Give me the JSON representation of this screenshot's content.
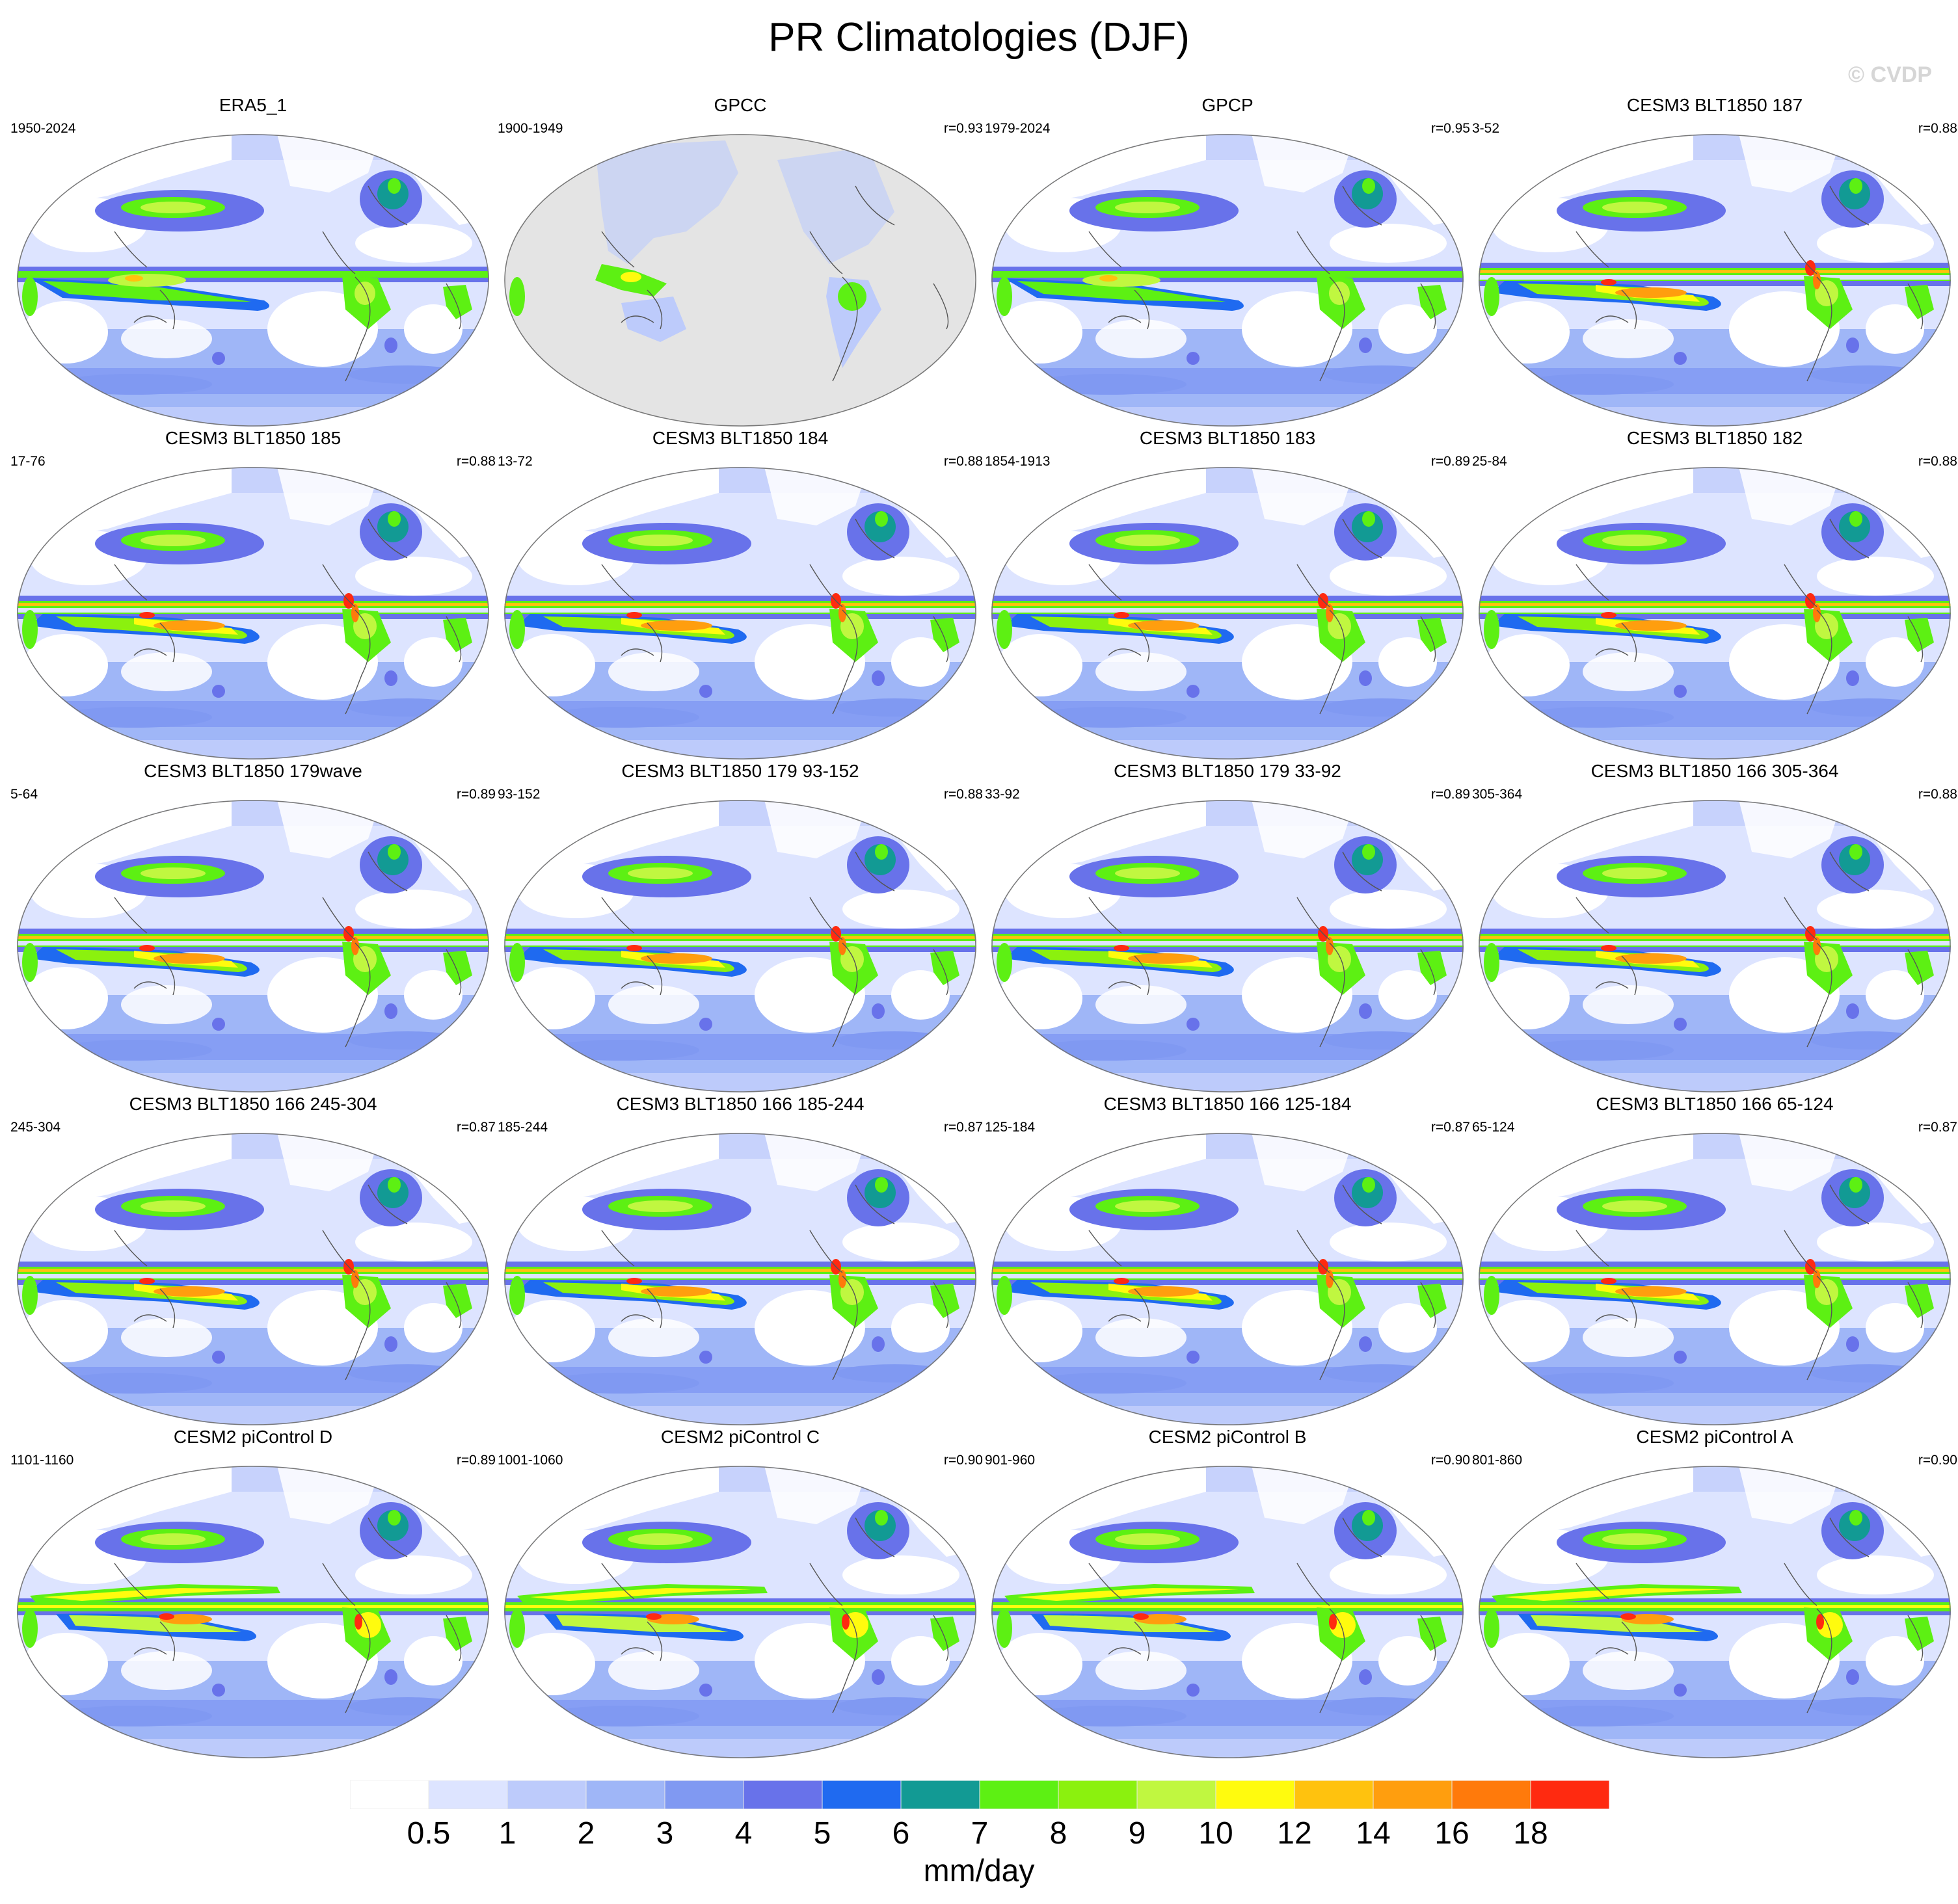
{
  "title": "PR Climatologies (DJF)",
  "watermark": "© CVDP",
  "colorbar": {
    "units": "mm/day",
    "labels": [
      "0.5",
      "1",
      "2",
      "3",
      "4",
      "5",
      "6",
      "7",
      "8",
      "9",
      "10",
      "12",
      "14",
      "16",
      "18"
    ],
    "colors": [
      "#ffffff",
      "#dde4ff",
      "#bdcbfb",
      "#9fb6f7",
      "#8099f2",
      "#6872ea",
      "#1f6af0",
      "#129a94",
      "#5df013",
      "#8bf10e",
      "#c0f740",
      "#fffb0e",
      "#ffc20e",
      "#ff9e0e",
      "#ff7a0b",
      "#ff2a10"
    ]
  },
  "panels": [
    {
      "title": "ERA5_1",
      "period": "1950-2024",
      "corr": "",
      "variant": "era5"
    },
    {
      "title": "GPCC",
      "period": "1900-1949",
      "corr": "r=0.93",
      "variant": "gpcc"
    },
    {
      "title": "GPCP",
      "period": "1979-2024",
      "corr": "r=0.95",
      "variant": "gpcp"
    },
    {
      "title": "CESM3 BLT1850 187",
      "period": "3-52",
      "corr": "r=0.88",
      "variant": "model"
    },
    {
      "title": "CESM3 BLT1850 185",
      "period": "17-76",
      "corr": "r=0.88",
      "variant": "model"
    },
    {
      "title": "CESM3 BLT1850 184",
      "period": "13-72",
      "corr": "r=0.88",
      "variant": "model"
    },
    {
      "title": "CESM3 BLT1850 183",
      "period": "1854-1913",
      "corr": "r=0.89",
      "variant": "model"
    },
    {
      "title": "CESM3 BLT1850 182",
      "period": "25-84",
      "corr": "r=0.88",
      "variant": "model"
    },
    {
      "title": "CESM3 BLT1850 179wave",
      "period": "5-64",
      "corr": "r=0.89",
      "variant": "model"
    },
    {
      "title": "CESM3 BLT1850 179 93-152",
      "period": "93-152",
      "corr": "r=0.88",
      "variant": "model"
    },
    {
      "title": "CESM3 BLT1850 179 33-92",
      "period": "33-92",
      "corr": "r=0.89",
      "variant": "model"
    },
    {
      "title": "CESM3 BLT1850 166 305-364",
      "period": "305-364",
      "corr": "r=0.88",
      "variant": "model"
    },
    {
      "title": "CESM3 BLT1850 166 245-304",
      "period": "245-304",
      "corr": "r=0.87",
      "variant": "model"
    },
    {
      "title": "CESM3 BLT1850 166 185-244",
      "period": "185-244",
      "corr": "r=0.87",
      "variant": "model"
    },
    {
      "title": "CESM3 BLT1850 166 125-184",
      "period": "125-184",
      "corr": "r=0.87",
      "variant": "model"
    },
    {
      "title": "CESM3 BLT1850 166 65-124",
      "period": "65-124",
      "corr": "r=0.87",
      "variant": "model"
    },
    {
      "title": "CESM2 piControl D",
      "period": "1101-1160",
      "corr": "r=0.89",
      "variant": "cesm2"
    },
    {
      "title": "CESM2 piControl C",
      "period": "1001-1060",
      "corr": "r=0.90",
      "variant": "cesm2"
    },
    {
      "title": "CESM2 piControl B",
      "period": "901-960",
      "corr": "r=0.90",
      "variant": "cesm2"
    },
    {
      "title": "CESM2 piControl A",
      "period": "801-860",
      "corr": "r=0.90",
      "variant": "cesm2"
    }
  ]
}
